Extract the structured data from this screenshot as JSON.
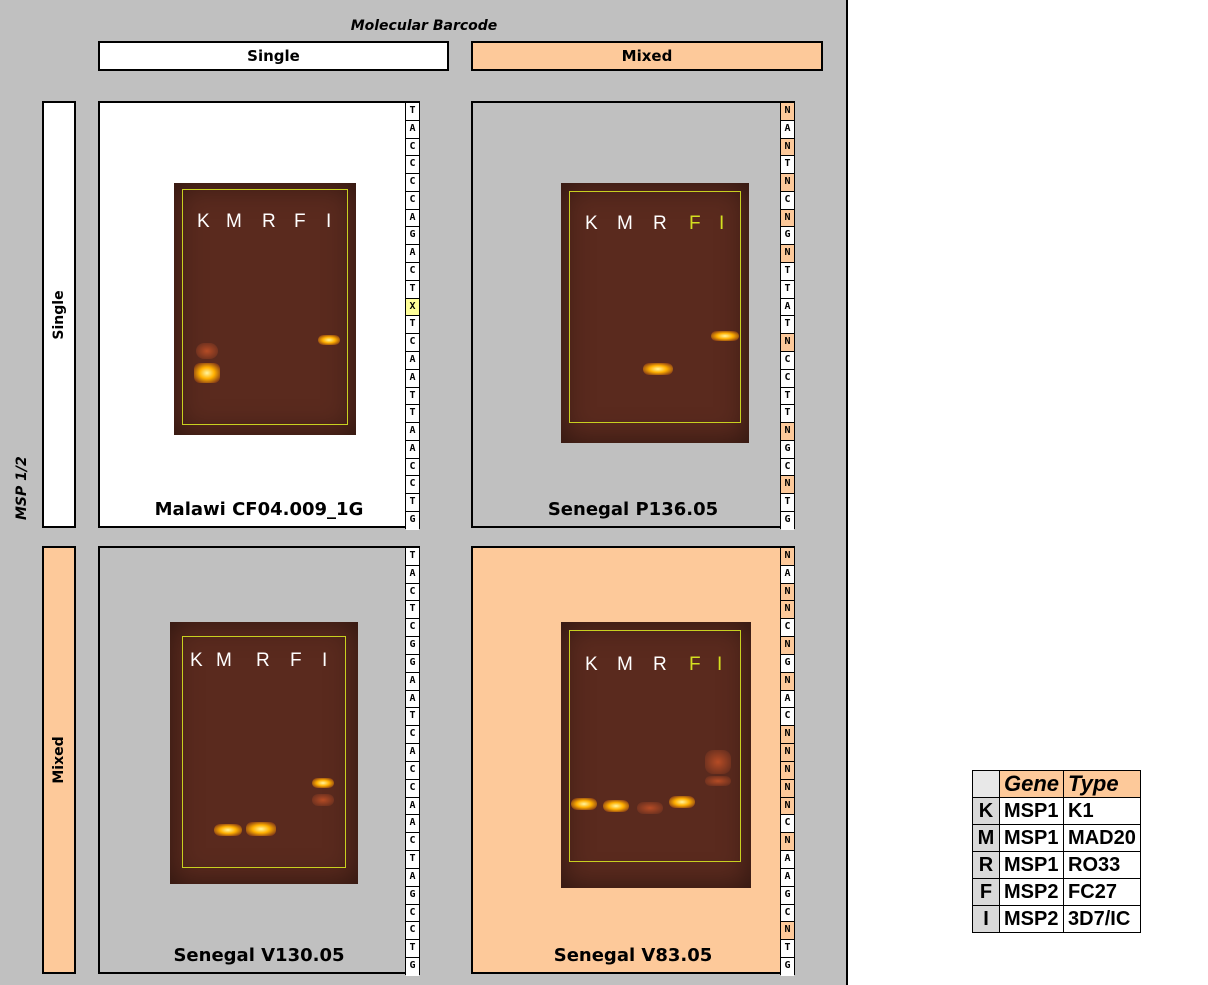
{
  "header": {
    "title": "Molecular Barcode",
    "col_single": "Single",
    "col_mixed": "Mixed"
  },
  "side": {
    "axis_label": "MSP 1/2",
    "row_single": "Single",
    "row_mixed": "Mixed"
  },
  "panels": [
    {
      "caption": "Malawi CF04.009_1G",
      "lanes": [
        "K",
        "M",
        "R",
        "F",
        "I"
      ],
      "barcode": [
        "T",
        "A",
        "C",
        "C",
        "C",
        "C",
        "A",
        "G",
        "A",
        "C",
        "T",
        "X",
        "T",
        "C",
        "A",
        "A",
        "T",
        "T",
        "A",
        "A",
        "C",
        "C",
        "T",
        "G"
      ]
    },
    {
      "caption": "Senegal P136.05",
      "lanes": [
        "K",
        "M",
        "R",
        "F",
        "I"
      ],
      "barcode": [
        "N",
        "A",
        "N",
        "T",
        "N",
        "C",
        "N",
        "G",
        "N",
        "T",
        "T",
        "A",
        "T",
        "N",
        "C",
        "C",
        "T",
        "T",
        "N",
        "G",
        "C",
        "N",
        "T",
        "G"
      ]
    },
    {
      "caption": "Senegal V130.05",
      "lanes": [
        "K",
        "M",
        "R",
        "F",
        "I"
      ],
      "barcode": [
        "T",
        "A",
        "C",
        "T",
        "C",
        "G",
        "G",
        "A",
        "A",
        "T",
        "C",
        "A",
        "C",
        "C",
        "A",
        "A",
        "C",
        "T",
        "A",
        "G",
        "C",
        "C",
        "T",
        "G"
      ]
    },
    {
      "caption": "Senegal V83.05",
      "lanes": [
        "K",
        "M",
        "R",
        "F",
        "I"
      ],
      "barcode": [
        "N",
        "A",
        "N",
        "N",
        "C",
        "N",
        "G",
        "N",
        "A",
        "C",
        "N",
        "N",
        "N",
        "N",
        "N",
        "C",
        "N",
        "A",
        "A",
        "G",
        "C",
        "N",
        "T",
        "G"
      ]
    }
  ],
  "legend": {
    "headers": [
      "Gene",
      "Type"
    ],
    "rows": [
      {
        "key": "K",
        "gene": "MSP1",
        "type": "K1"
      },
      {
        "key": "M",
        "gene": "MSP1",
        "type": "MAD20"
      },
      {
        "key": "R",
        "gene": "MSP1",
        "type": "RO33"
      },
      {
        "key": "F",
        "gene": "MSP2",
        "type": "FC27"
      },
      {
        "key": "I",
        "gene": "MSP2",
        "type": "3D7/IC"
      }
    ]
  },
  "colors": {
    "peach": "#fdc99a",
    "frame": "#c0c0c0",
    "highlight_x": "#ffff99",
    "gel_box": "#c8d020"
  }
}
